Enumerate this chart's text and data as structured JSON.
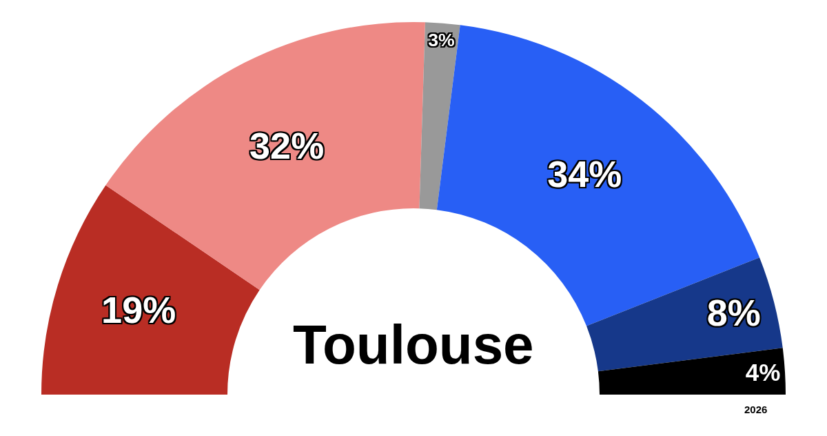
{
  "chart_data": {
    "type": "donut",
    "title": "Toulouse",
    "categories": [
      null,
      null,
      null,
      null,
      null,
      null
    ],
    "values": [
      19,
      32,
      3,
      34,
      8,
      4
    ],
    "value_labels": [
      "19%",
      "32%",
      "3%",
      "34%",
      "8%",
      "4%"
    ],
    "colors": [
      "#b92d24",
      "#ee8985",
      "#999999",
      "#285ff5",
      "#16388a",
      "#000000"
    ],
    "annotations": [
      "2026"
    ],
    "legend": false
  }
}
